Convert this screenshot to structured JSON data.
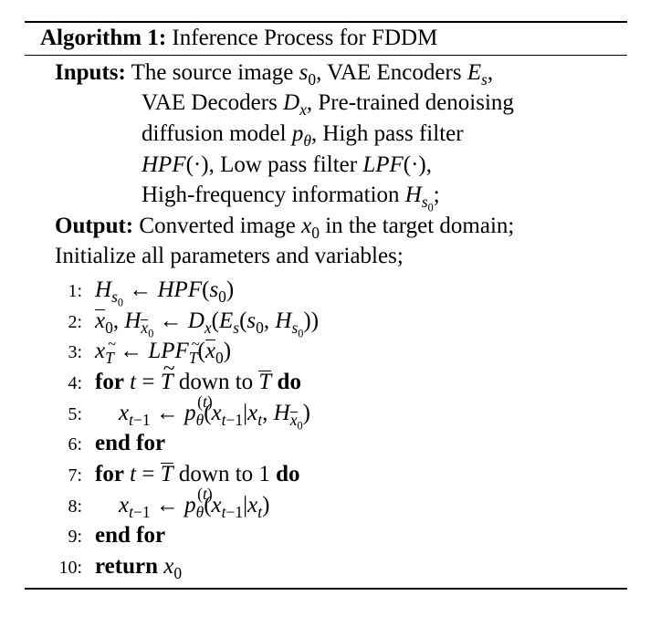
{
  "algorithm": {
    "label": "Algorithm 1:",
    "title": "Inference Process for FDDM"
  },
  "inputs": {
    "label": "Inputs:",
    "l1_a": "The source image ",
    "l1_b": ", VAE Encoders ",
    "l2_a": "VAE Decoders ",
    "l2_b": ", Pre-trained denoising",
    "l3_a": "diffusion model ",
    "l3_b": ", High pass filter",
    "l4_b": ", Low pass filter ",
    "l5_a": "High-frequency information "
  },
  "output": {
    "label": "Output:",
    "a": "Converted image ",
    "b": " in the target domain;"
  },
  "init": "Initialize all parameters and variables;",
  "kw": {
    "for": "for",
    "do": "do",
    "end_for": "end for",
    "return": "return",
    "down_to": "down to"
  },
  "lines": [
    "1:",
    "2:",
    "3:",
    "4:",
    "5:",
    "6:",
    "7:",
    "8:",
    "9:",
    "10:"
  ]
}
